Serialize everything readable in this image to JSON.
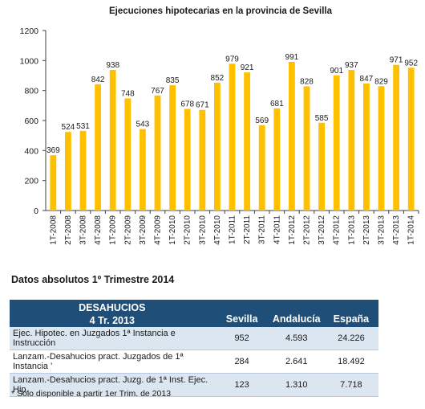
{
  "chart_data": {
    "type": "bar",
    "title": "Ejecuciones hipotecarias en la provincia de Sevilla",
    "categories": [
      "1T-2008",
      "2T-2008",
      "3T-2008",
      "4T-2008",
      "1T-2009",
      "2T-2009",
      "3T-2009",
      "4T-2009",
      "1T-2010",
      "2T-2010",
      "3T-2010",
      "4T-2010",
      "1T-2011",
      "2T-2011",
      "3T-2011",
      "4T-2011",
      "1T-2012",
      "2T-2012",
      "3T-2012",
      "4T-2012",
      "1T-2013",
      "2T-2013",
      "3T-2013",
      "4T-2013",
      "1T-2014"
    ],
    "values": [
      369,
      524,
      531,
      842,
      938,
      748,
      543,
      767,
      835,
      678,
      671,
      852,
      979,
      921,
      569,
      681,
      991,
      828,
      585,
      901,
      937,
      847,
      829,
      971,
      952
    ],
    "ylim": [
      0,
      1200
    ],
    "yticks": [
      0,
      200,
      400,
      600,
      800,
      1000,
      1200
    ],
    "bar_color": "#ffc000",
    "grid": false
  },
  "table_section": {
    "subtitle": "Datos absolutos 1º Trimestre 2014",
    "header": {
      "title_line1": "DESAHUCIOS",
      "title_line2": "4 Tr. 2013",
      "columns": [
        "Sevilla",
        "Andalucía",
        "España"
      ]
    },
    "rows": [
      {
        "label": "Ejec. Hipotec. en Juzgados 1ª Instancia e Instrucción",
        "values": [
          "952",
          "4.593",
          "24.226"
        ]
      },
      {
        "label": "Lanzam.-Desahucios pract. Juzgados de 1ª Instancia '",
        "values": [
          "284",
          "2.641",
          "18.492"
        ]
      },
      {
        "label": "Lanzam.-Desahucios pract. Juzg. de 1ª Inst. Ejec. Hip.",
        "values": [
          "123",
          "1.310",
          "7.718"
        ]
      }
    ],
    "footnote": "* Sólo disponible a partir 1er Trim. de 2013",
    "header_color": "#1f4e79",
    "alt_row_color": "#dce6f1"
  }
}
